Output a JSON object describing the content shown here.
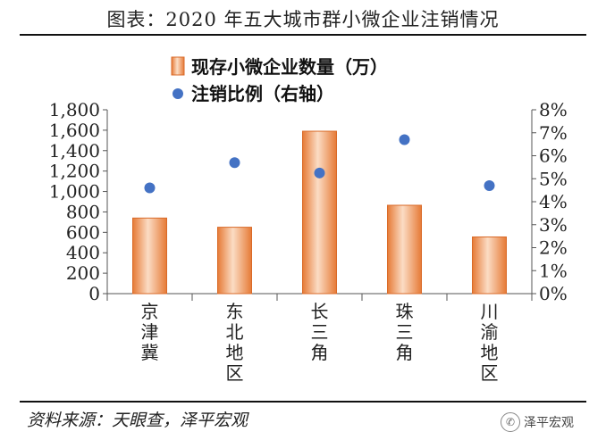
{
  "header": {
    "title": "图表：2020 年五大城市群小微企业注销情况"
  },
  "footer": {
    "source": "资料来源：天眼查，泽平宏观",
    "watermark": "泽平宏观"
  },
  "colors": {
    "bar": "#e8874a",
    "bar_light": "#fbdcc4",
    "dot": "#4472c4",
    "axis": "#555555"
  },
  "chart_data": {
    "type": "bar",
    "categories": [
      "京津冀",
      "东北地区",
      "长三角",
      "珠三角",
      "川渝地区"
    ],
    "series": [
      {
        "name": "现存小微企业数量（万）",
        "type": "bar",
        "axis": "left",
        "values": [
          740,
          650,
          1590,
          865,
          555
        ]
      },
      {
        "name": "注销比例（右轴）",
        "type": "scatter",
        "axis": "right",
        "values": [
          4.6,
          5.7,
          5.25,
          6.7,
          4.7
        ]
      }
    ],
    "ylim": [
      0,
      1800
    ],
    "y_ticks": [
      "0",
      "200",
      "400",
      "600",
      "800",
      "1,000",
      "1,200",
      "1,400",
      "1,600",
      "1,800"
    ],
    "y2lim": [
      0,
      8
    ],
    "y2_ticks": [
      "0%",
      "1%",
      "2%",
      "3%",
      "4%",
      "5%",
      "6%",
      "7%",
      "8%"
    ],
    "legend": "top",
    "grid": false
  }
}
